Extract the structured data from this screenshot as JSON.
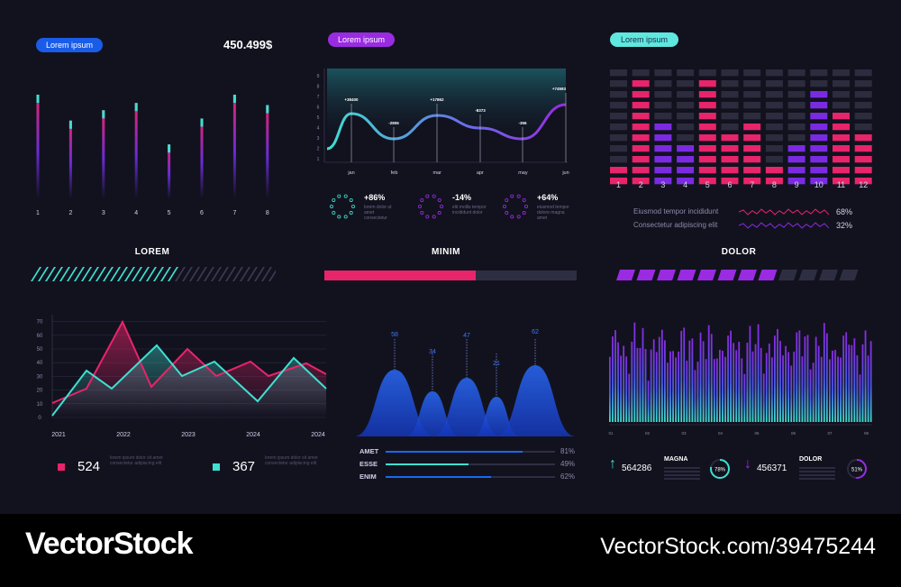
{
  "panel1": {
    "pill_label": "Lorem ipsum",
    "total_value": "450.499$",
    "x_labels": [
      "1",
      "2",
      "3",
      "4",
      "5",
      "6",
      "7",
      "8"
    ],
    "bar_values": [
      100,
      75,
      85,
      92,
      52,
      77,
      100,
      90
    ],
    "section_title": "LOREM"
  },
  "panel2": {
    "pill_label": "Lorem ipsum",
    "y_ticks": [
      "1",
      "2",
      "3",
      "4",
      "5",
      "6",
      "7",
      "8",
      "9"
    ],
    "x_labels": [
      "jan",
      "feb",
      "mar",
      "apr",
      "may",
      "jun"
    ],
    "annotations": [
      "+38400",
      "-2806",
      "+17862",
      "-8373",
      "-356",
      "+74593"
    ],
    "kpis": [
      {
        "value": "+86%",
        "desc": "lorem dolor ut amet consectetur"
      },
      {
        "value": "-14%",
        "desc": "elit mollis tempor incididunt dolor"
      },
      {
        "value": "+64%",
        "desc": "eiusmod tempor dolore magna amet"
      }
    ],
    "section_title": "MINIM"
  },
  "panel3": {
    "pill_label": "Lorem ipsum",
    "x_labels": [
      "1",
      "2",
      "3",
      "4",
      "5",
      "6",
      "7",
      "8",
      "9",
      "10",
      "11",
      "12"
    ],
    "column_levels": [
      2,
      10,
      6,
      4,
      10,
      5,
      6,
      2,
      4,
      9,
      7,
      5
    ],
    "legend": [
      {
        "label": "Eiusmod tempor incididunt",
        "value": "68%",
        "color": "#e8246a"
      },
      {
        "label": "Consectetur adipiscing elit",
        "value": "32%",
        "color": "#8a2be2"
      }
    ],
    "section_title": "DOLOR"
  },
  "progress": {
    "lorem_fraction": 0.6,
    "minim_fraction": 0.6,
    "dolor_fraction": 0.63
  },
  "panel4": {
    "y_ticks": [
      "0",
      "10",
      "20",
      "30",
      "40",
      "50",
      "60",
      "70"
    ],
    "x_labels": [
      "2021",
      "2022",
      "2023",
      "2024",
      "2024"
    ],
    "stats": [
      {
        "value": "524",
        "color": "#e8246a"
      },
      {
        "value": "367",
        "color": "#3ee0d0"
      }
    ],
    "stat_desc": "lorem ipsum dolor sit amet consectetur adipiscing elit"
  },
  "panel5": {
    "peak_labels": [
      "58",
      "34",
      "47",
      "21",
      "62"
    ],
    "rows": [
      {
        "label": "AMET",
        "value": "81%",
        "fraction": 0.81,
        "color": "#1a6af0"
      },
      {
        "label": "ESSE",
        "value": "49%",
        "fraction": 0.49,
        "color": "#3ee0d0"
      },
      {
        "label": "ENIM",
        "value": "62%",
        "fraction": 0.62,
        "color": "#1a6af0"
      }
    ]
  },
  "panel6": {
    "x_labels": [
      "01",
      "02",
      "03",
      "04",
      "05",
      "06",
      "07",
      "08"
    ],
    "stat_up": {
      "value": "564286",
      "title": "MAGNA",
      "percent": "78%",
      "fraction": 0.78
    },
    "stat_down": {
      "value": "456371",
      "title": "DOLOR",
      "percent": "51%",
      "fraction": 0.51
    }
  },
  "footer": {
    "brand": "VectorStock",
    "url": "VectorStock.com/39475244"
  },
  "colors": {
    "background": "#12121f",
    "pink": "#e8246a",
    "cyan": "#3ee0d0",
    "purple": "#8a2be2",
    "blue": "#1a6af0"
  }
}
